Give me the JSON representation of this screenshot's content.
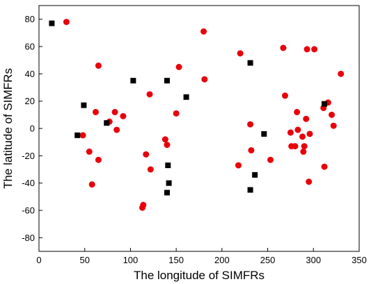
{
  "chart_data": {
    "type": "scatter",
    "xlabel": "The longitude of SIMFRs",
    "ylabel": "The latitude of SIMFRs",
    "xlim": [
      0,
      350
    ],
    "ylim": [
      -90,
      90
    ],
    "x_ticks": [
      0,
      50,
      100,
      150,
      200,
      250,
      300,
      350
    ],
    "y_ticks": [
      -80,
      -60,
      -40,
      -20,
      0,
      20,
      40,
      60,
      80
    ],
    "grid": false,
    "legend": "none",
    "series": [
      {
        "marker": "circle",
        "color": "#e8000b",
        "points": [
          [
            30,
            78
          ],
          [
            65,
            46
          ],
          [
            48,
            -5
          ],
          [
            55,
            -17
          ],
          [
            58,
            -41
          ],
          [
            62,
            12
          ],
          [
            65,
            -23
          ],
          [
            77,
            5
          ],
          [
            83,
            12
          ],
          [
            85,
            -1
          ],
          [
            92,
            9
          ],
          [
            113,
            -58
          ],
          [
            114,
            -56
          ],
          [
            117,
            -19
          ],
          [
            121,
            25
          ],
          [
            122,
            -30
          ],
          [
            138,
            -8
          ],
          [
            140,
            -12
          ],
          [
            150,
            11
          ],
          [
            153,
            45
          ],
          [
            180,
            71
          ],
          [
            181,
            36
          ],
          [
            218,
            -27
          ],
          [
            220,
            55
          ],
          [
            231,
            3
          ],
          [
            232,
            -16
          ],
          [
            253,
            -23
          ],
          [
            267,
            59
          ],
          [
            269,
            24
          ],
          [
            275,
            -3
          ],
          [
            276,
            -13
          ],
          [
            280,
            -13
          ],
          [
            282,
            12
          ],
          [
            283,
            -1
          ],
          [
            288,
            -6
          ],
          [
            289,
            -17
          ],
          [
            290,
            -13
          ],
          [
            292,
            7
          ],
          [
            293,
            58
          ],
          [
            295,
            -39
          ],
          [
            296,
            -4
          ],
          [
            301,
            58
          ],
          [
            311,
            15
          ],
          [
            312,
            -28
          ],
          [
            316,
            19
          ],
          [
            320,
            10
          ],
          [
            322,
            2
          ],
          [
            330,
            40
          ]
        ]
      },
      {
        "marker": "square",
        "color": "#000000",
        "points": [
          [
            14,
            77
          ],
          [
            42,
            -5
          ],
          [
            49,
            17
          ],
          [
            74,
            4
          ],
          [
            103,
            35
          ],
          [
            140,
            35
          ],
          [
            141,
            -27
          ],
          [
            142,
            -40
          ],
          [
            140,
            -47
          ],
          [
            161,
            23
          ],
          [
            231,
            48
          ],
          [
            231,
            -45
          ],
          [
            236,
            -34
          ],
          [
            246,
            -4
          ],
          [
            312,
            18
          ]
        ]
      }
    ]
  }
}
